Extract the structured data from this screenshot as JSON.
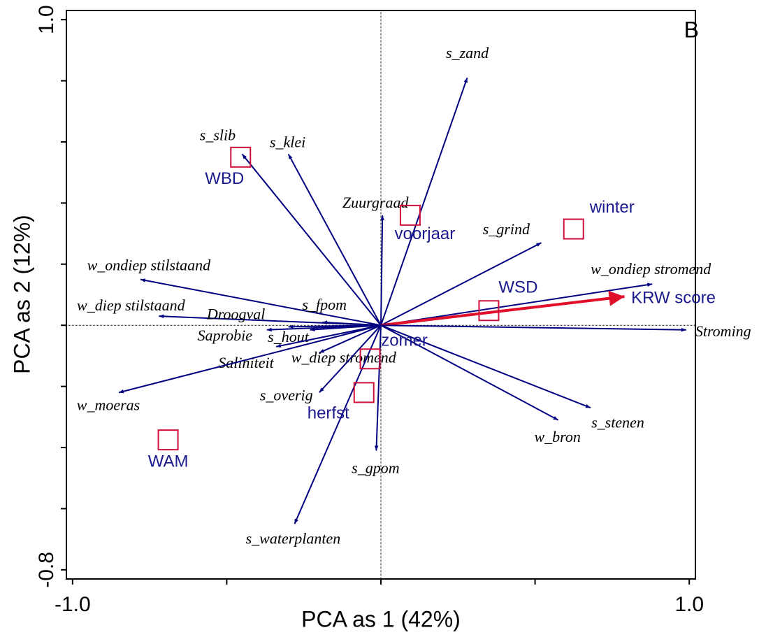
{
  "chart_data": {
    "type": "biplot",
    "panel_label": "B",
    "x_label": "PCA as 1 (42%)",
    "y_label": "PCA as 2 (12%)",
    "xlim": [
      -1.02,
      1.02
    ],
    "ylim": [
      -0.83,
      1.03
    ],
    "xticks": [
      {
        "value": -1,
        "label": "-1.0"
      },
      {
        "value": 1,
        "label": "1.0"
      }
    ],
    "x_minor_ticks": [
      -0.5,
      0,
      0.5
    ],
    "yticks": [
      {
        "value": -0.8,
        "label": "-0.8"
      },
      {
        "value": 1,
        "label": "1.0"
      }
    ],
    "y_minor_ticks": [
      -0.6,
      -0.4,
      -0.2,
      0,
      0.2,
      0.4,
      0.6,
      0.8
    ],
    "arrow_color": "#000080",
    "highlight_color": "#e0102a",
    "sample_color": "#d0103a",
    "sample_label_color": "#1a1a8c",
    "variables": [
      {
        "name": "s_zand",
        "x": 0.28,
        "y": 0.81
      },
      {
        "name": "s_slib",
        "x": -0.45,
        "y": 0.56
      },
      {
        "name": "s_klei",
        "x": -0.3,
        "y": 0.56
      },
      {
        "name": "Zuurgraad",
        "x": 0.005,
        "y": 0.36
      },
      {
        "name": "s_grind",
        "x": 0.52,
        "y": 0.27
      },
      {
        "name": "w_ondiep stilstaand",
        "x": -0.78,
        "y": 0.15
      },
      {
        "name": "w_ondiep stromend",
        "x": 0.88,
        "y": 0.135
      },
      {
        "name": "KRW score",
        "x": 0.79,
        "y": 0.094,
        "highlight": true
      },
      {
        "name": "w_diep stilstaand",
        "x": -0.72,
        "y": 0.03
      },
      {
        "name": "Droogval",
        "x": -0.3,
        "y": -0.005
      },
      {
        "name": "s_fpom",
        "x": -0.19,
        "y": 0.01
      },
      {
        "name": "Saprobie",
        "x": -0.37,
        "y": -0.015
      },
      {
        "name": "s_hout",
        "x": -0.23,
        "y": -0.015
      },
      {
        "name": "Stroming",
        "x": 0.99,
        "y": -0.015
      },
      {
        "name": "Saliniteit",
        "x": -0.34,
        "y": -0.07
      },
      {
        "name": "w_diep stromend",
        "x": -0.2,
        "y": -0.09
      },
      {
        "name": "w_moeras",
        "x": -0.85,
        "y": -0.22
      },
      {
        "name": "s_overig",
        "x": -0.2,
        "y": -0.22
      },
      {
        "name": "s_stenen",
        "x": 0.68,
        "y": -0.27
      },
      {
        "name": "w_bron",
        "x": 0.575,
        "y": -0.31
      },
      {
        "name": "s_gpom",
        "x": -0.015,
        "y": -0.41
      },
      {
        "name": "s_waterplanten",
        "x": -0.28,
        "y": -0.65
      }
    ],
    "samples": [
      {
        "name": "WBD",
        "x": -0.455,
        "y": 0.55
      },
      {
        "name": "voorjaar",
        "x": 0.095,
        "y": 0.36
      },
      {
        "name": "winter",
        "x": 0.625,
        "y": 0.315
      },
      {
        "name": "WSD",
        "x": 0.35,
        "y": 0.048
      },
      {
        "name": "zomer",
        "x": -0.035,
        "y": -0.11
      },
      {
        "name": "herfst",
        "x": -0.055,
        "y": -0.22
      },
      {
        "name": "WAM",
        "x": -0.69,
        "y": -0.375
      }
    ]
  }
}
